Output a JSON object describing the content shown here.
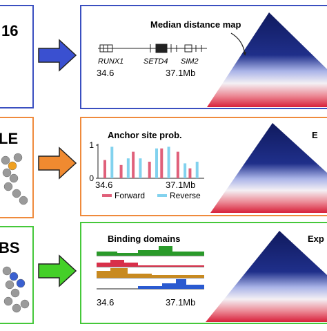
{
  "panels": [
    {
      "left_label": "16",
      "title": "Median distance map",
      "genes": [
        "RUNX1",
        "SETD4",
        "SIM2"
      ],
      "axis": [
        "34.6",
        "37.1Mb"
      ]
    },
    {
      "left_label": "LE",
      "title": "Anchor site prob.",
      "corner": "E",
      "axis": [
        "34.6",
        "37.1Mb"
      ],
      "chart": {
        "type": "bar",
        "ylim": [
          0,
          1
        ],
        "yticks": [
          0,
          1
        ],
        "series": [
          {
            "name": "Forward",
            "color": "#e0607a",
            "values": [
              0.55,
              0.4,
              0.8,
              0.5,
              0.9,
              0.8,
              0.3
            ]
          },
          {
            "name": "Reverse",
            "color": "#82d2ee",
            "values": [
              0.95,
              0.6,
              0.6,
              0.9,
              0.95,
              0.45,
              0.5
            ]
          }
        ]
      }
    },
    {
      "left_label": "BS",
      "title": "Binding domains",
      "corner": "Exp",
      "axis": [
        "34.6",
        "37.1Mb"
      ]
    }
  ]
}
